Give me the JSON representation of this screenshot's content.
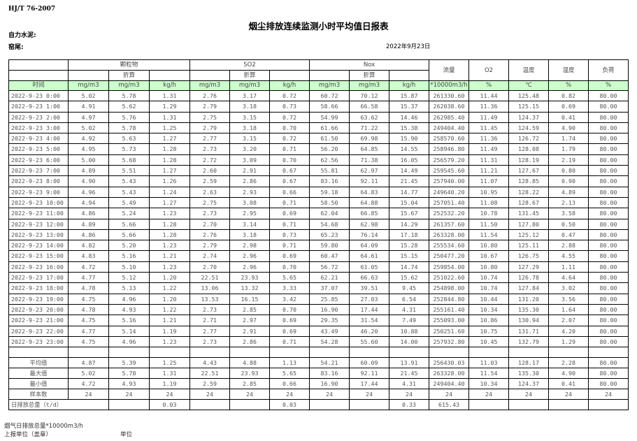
{
  "standard": "HJ/T  76-2007",
  "title": "烟尘排放连续监测小时平均值日报表",
  "company_label": "自力水泥:",
  "kiln_label": "窑尾:",
  "date": "2022年9月23日",
  "header": {
    "groups": [
      "颗粒物",
      "SO2",
      "Nox"
    ],
    "converted": "折算",
    "flow": "流量",
    "o2": "O2",
    "temp": "温度",
    "humidity": "湿度",
    "load": "负荷",
    "time": "时间",
    "units": [
      "mg/m3",
      "mg/m3",
      "kg/h",
      "mg/m3",
      "mg/m3",
      "kg/h",
      "mg/m3",
      "mg/m3",
      "kg/h",
      "*10000m3/h",
      "%",
      "℃",
      "%",
      "%"
    ]
  },
  "rows": [
    [
      "2022-9-23  0:00",
      "5.02",
      "5.78",
      "1.31",
      "2.76",
      "3.17",
      "0.72",
      "60.72",
      "70.12",
      "15.87",
      "261330.60",
      "11.44",
      "125.48",
      "0.82",
      "80.00"
    ],
    [
      "2022-9-23  1:00",
      "4.91",
      "5.62",
      "1.29",
      "2.79",
      "3.18",
      "0.73",
      "58.66",
      "66.58",
      "15.37",
      "262038.60",
      "11.36",
      "125.15",
      "0.69",
      "80.00"
    ],
    [
      "2022-9-23  2:00",
      "4.97",
      "5.76",
      "1.31",
      "2.75",
      "3.15",
      "0.72",
      "54.99",
      "63.62",
      "14.46",
      "262985.40",
      "11.49",
      "124.37",
      "0.41",
      "80.00"
    ],
    [
      "2022-9-23  3:00",
      "5.02",
      "5.78",
      "1.25",
      "2.79",
      "3.18",
      "0.70",
      "61.66",
      "71.22",
      "15.38",
      "249404.40",
      "11.45",
      "124.59",
      "4.90",
      "80.00"
    ],
    [
      "2022-9-23  4:00",
      "4.92",
      "5.63",
      "1.27",
      "2.77",
      "3.15",
      "0.72",
      "61.50",
      "69.98",
      "15.90",
      "258570.60",
      "11.36",
      "126.72",
      "1.74",
      "80.00"
    ],
    [
      "2022-9-23  5:00",
      "4.95",
      "5.73",
      "1.28",
      "2.73",
      "3.20",
      "0.71",
      "56.20",
      "64.85",
      "14.55",
      "258946.80",
      "11.49",
      "128.08",
      "1.79",
      "80.00"
    ],
    [
      "2022-9-23  6:00",
      "5.00",
      "5.68",
      "1.28",
      "2.72",
      "3.09",
      "0.70",
      "62.56",
      "71.38",
      "16.05",
      "256579.20",
      "11.31",
      "128.19",
      "2.19",
      "80.00"
    ],
    [
      "2022-9-23  7:00",
      "4.89",
      "5.51",
      "1.27",
      "2.60",
      "2.91",
      "0.67",
      "55.81",
      "62.97",
      "14.49",
      "259545.60",
      "11.21",
      "127.67",
      "0.80",
      "80.00"
    ],
    [
      "2022-9-23  8:00",
      "4.90",
      "5.43",
      "1.26",
      "2.59",
      "2.86",
      "0.67",
      "83.16",
      "92.11",
      "21.45",
      "257940.00",
      "11.07",
      "128.85",
      "0.90",
      "80.00"
    ],
    [
      "2022-9-23  9:00",
      "4.96",
      "5.43",
      "1.24",
      "2.63",
      "2.93",
      "0.66",
      "59.18",
      "64.83",
      "14.77",
      "249640.20",
      "10.95",
      "128.22",
      "4.89",
      "80.00"
    ],
    [
      "2022-9-23 10:00",
      "4.94",
      "5.49",
      "1.27",
      "2.75",
      "3.08",
      "0.71",
      "58.50",
      "64.88",
      "15.04",
      "257051.40",
      "11.08",
      "128.67",
      "2.13",
      "80.00"
    ],
    [
      "2022-9-23 11:00",
      "4.86",
      "5.24",
      "1.23",
      "2.73",
      "2.95",
      "0.69",
      "62.04",
      "66.85",
      "15.67",
      "252532.20",
      "10.78",
      "131.45",
      "3.58",
      "80.00"
    ],
    [
      "2022-9-23 12:00",
      "4.89",
      "5.66",
      "1.28",
      "2.70",
      "3.14",
      "0.71",
      "54.68",
      "62.98",
      "14.29",
      "261357.60",
      "11.50",
      "127.80",
      "0.50",
      "80.00"
    ],
    [
      "2022-9-23 13:00",
      "4.86",
      "5.66",
      "1.28",
      "2.76",
      "3.18",
      "0.73",
      "65.23",
      "76.14",
      "17.18",
      "263328.00",
      "11.54",
      "125.12",
      "0.47",
      "80.00"
    ],
    [
      "2022-9-23 14:00",
      "4.82",
      "5.20",
      "1.23",
      "2.79",
      "2.98",
      "0.71",
      "59.80",
      "64.09",
      "15.28",
      "255534.60",
      "10.80",
      "125.11",
      "2.88",
      "80.00"
    ],
    [
      "2022-9-23 15:00",
      "4.83",
      "5.16",
      "1.21",
      "2.74",
      "2.96",
      "0.69",
      "60.47",
      "64.61",
      "15.15",
      "250477.20",
      "10.67",
      "126.75",
      "4.55",
      "80.00"
    ],
    [
      "2022-9-23 16:00",
      "4.72",
      "5.10",
      "1.23",
      "2.70",
      "2.96",
      "0.70",
      "56.72",
      "61.05",
      "14.74",
      "259854.00",
      "10.80",
      "127.29",
      "1.11",
      "80.00"
    ],
    [
      "2022-9-23 17:00",
      "4.77",
      "5.12",
      "1.20",
      "22.51",
      "23.93",
      "5.65",
      "62.21",
      "66.63",
      "15.62",
      "251022.60",
      "10.74",
      "126.78",
      "4.64",
      "80.00"
    ],
    [
      "2022-9-23 18:00",
      "4.78",
      "5.13",
      "1.22",
      "13.06",
      "13.32",
      "3.33",
      "37.07",
      "39.51",
      "9.45",
      "254898.00",
      "10.74",
      "127.84",
      "3.02",
      "80.00"
    ],
    [
      "2022-9-23 19:00",
      "4.75",
      "4.96",
      "1.20",
      "13.53",
      "16.15",
      "3.42",
      "25.85",
      "27.03",
      "6.54",
      "252844.80",
      "10.44",
      "131.20",
      "3.56",
      "80.00"
    ],
    [
      "2022-9-23 20:00",
      "4.78",
      "4.93",
      "1.22",
      "2.73",
      "2.85",
      "0.70",
      "16.90",
      "17.44",
      "4.31",
      "255161.40",
      "10.34",
      "135.30",
      "1.64",
      "80.00"
    ],
    [
      "2022-9-23 21:00",
      "4.75",
      "5.16",
      "1.21",
      "2.71",
      "2.97",
      "0.69",
      "29.35",
      "31.54",
      "7.49",
      "255093.00",
      "10.86",
      "130.94",
      "2.07",
      "80.00"
    ],
    [
      "2022-9-23 22:00",
      "4.77",
      "5.14",
      "1.19",
      "2.77",
      "2.91",
      "0.69",
      "43.49",
      "46.20",
      "10.88",
      "250251.60",
      "10.75",
      "131.71",
      "4.20",
      "80.00"
    ],
    [
      "2022-9-23 23:00",
      "4.75",
      "4.96",
      "1.23",
      "2.73",
      "2.86",
      "0.71",
      "54.28",
      "55.60",
      "14.00",
      "257932.80",
      "10.45",
      "132.79",
      "1.29",
      "80.00"
    ]
  ],
  "summary": [
    [
      "平均值",
      "4.87",
      "5.39",
      "1.25",
      "4.43",
      "4.88",
      "1.13",
      "54.21",
      "60.09",
      "13.91",
      "256430.03",
      "11.03",
      "128.17",
      "2.28",
      "80.00"
    ],
    [
      "最大值",
      "5.02",
      "5.78",
      "1.31",
      "22.51",
      "23.93",
      "5.65",
      "83.16",
      "92.11",
      "21.45",
      "263328.00",
      "11.54",
      "135.30",
      "4.90",
      "80.00"
    ],
    [
      "最小值",
      "4.72",
      "4.93",
      "1.19",
      "2.59",
      "2.85",
      "0.66",
      "16.90",
      "17.44",
      "4.31",
      "249404.40",
      "10.34",
      "124.37",
      "0.41",
      "80.00"
    ],
    [
      "样本数",
      "24",
      "24",
      "24",
      "24",
      "24",
      "24",
      "24",
      "24",
      "24",
      "24",
      "24",
      "24",
      "24",
      "24"
    ]
  ],
  "daily_total": {
    "label": "日排放总量（t/d）",
    "values": [
      "",
      "0.03",
      "",
      "",
      "0.03",
      "",
      "",
      "0.33",
      "615.43",
      "",
      "",
      "",
      ""
    ]
  },
  "footer": {
    "flue_gas_total": "烟气日排放总量*10000m3/h",
    "reporting_unit": "上报单位（盖章）",
    "unit": "单位"
  }
}
